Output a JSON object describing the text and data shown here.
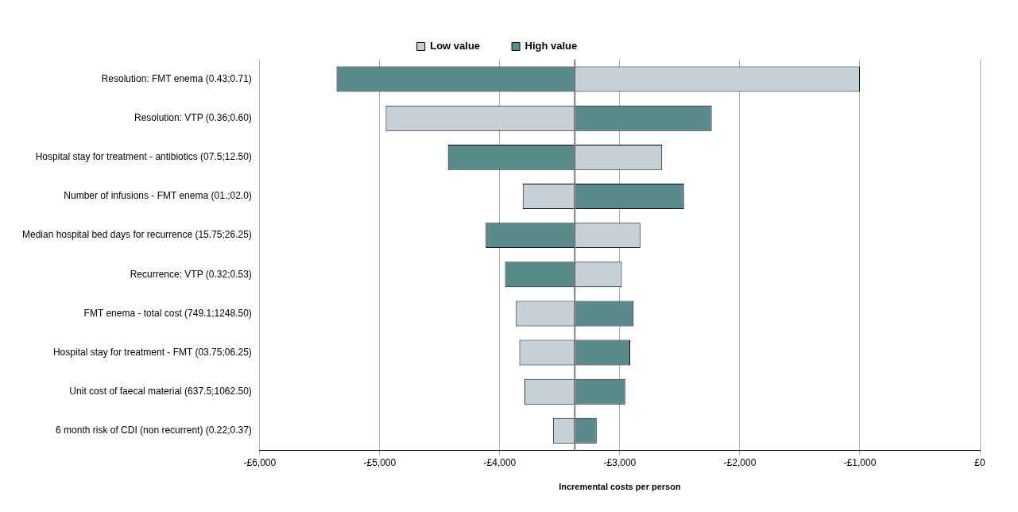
{
  "chart_data": {
    "type": "bar",
    "orientation": "horizontal",
    "xlabel": "Incremental costs per person",
    "categories": [
      "Resolution: FMT enema (0.43;0.71)",
      "Resolution: VTP (0.36;0.60)",
      "Hospital stay for treatment - antibiotics (07.5;12.50)",
      "Number of infusions - FMT enema (01.;02.0)",
      "Median hospital bed days for recurrence (15.75;26.25)",
      "Recurrence: VTP (0.32;0.53)",
      "FMT enema - total cost (749.1;1248.50)",
      "Hospital stay for treatment - FMT (03.75;06.25)",
      "Unit cost of faecal material (637.5;1062.50)",
      "6 month risk of CDI (non recurrent) (0.22;0.37)"
    ],
    "series": [
      {
        "name": "Low value",
        "color": "#c5d1d7",
        "base": [
          -3375,
          -3375,
          -3375,
          -3375,
          -3375,
          -3375,
          -3375,
          -3375,
          -3375,
          -3375
        ],
        "values": [
          2375,
          -1575,
          728,
          -434,
          546,
          392,
          -490,
          -462,
          -420,
          -182
        ]
      },
      {
        "name": "High value",
        "color": "#5a8a8a",
        "base": [
          -3375,
          -3375,
          -3375,
          -3375,
          -3375,
          -3375,
          -3375,
          -3375,
          -3375,
          -3375
        ],
        "values": [
          -1985,
          1141,
          -1057,
          910,
          -742,
          -581,
          490,
          462,
          420,
          182
        ]
      }
    ],
    "xlim": [
      -6000,
      0
    ],
    "xticks": [
      {
        "value": -6000,
        "label": "-£6,000"
      },
      {
        "value": -5000,
        "label": "-£5,000"
      },
      {
        "value": -4000,
        "label": "-£4,000"
      },
      {
        "value": -3000,
        "label": "-£3,000"
      },
      {
        "value": -2000,
        "label": "-£2,000"
      },
      {
        "value": -1000,
        "label": "-£1,000"
      },
      {
        "value": 0,
        "label": "£0"
      }
    ],
    "ref_lines": [
      {
        "axis": "x",
        "value": -3375,
        "color": "#808080"
      }
    ],
    "grid": "x",
    "legend": "top"
  }
}
